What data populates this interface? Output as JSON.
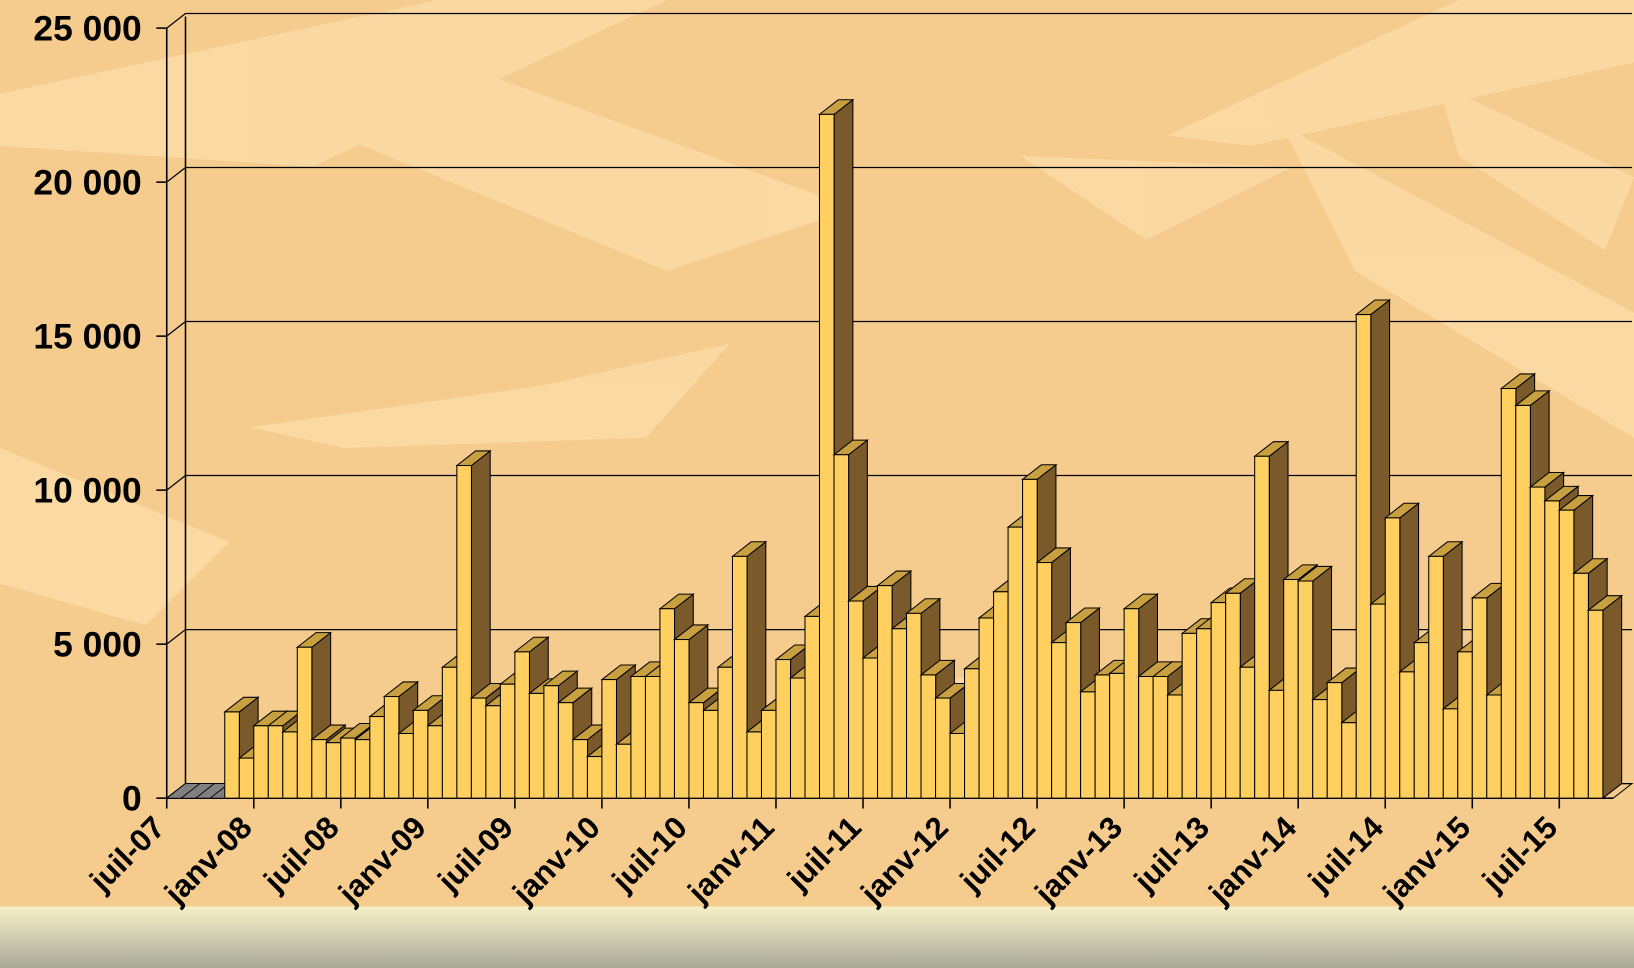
{
  "chart_data": {
    "type": "bar3d",
    "categories": [
      "juil-07",
      null,
      null,
      null,
      null,
      null,
      "janv-08",
      null,
      null,
      null,
      null,
      null,
      "juil-08",
      null,
      null,
      null,
      null,
      null,
      "janv-09",
      null,
      null,
      null,
      null,
      null,
      "juil-09",
      null,
      null,
      null,
      null,
      null,
      "janv-10",
      null,
      null,
      null,
      null,
      null,
      "juil-10",
      null,
      null,
      null,
      null,
      null,
      "janv-11",
      null,
      null,
      null,
      null,
      null,
      "juil-11",
      null,
      null,
      null,
      null,
      null,
      "janv-12",
      null,
      null,
      null,
      null,
      null,
      "juil-12",
      null,
      null,
      null,
      null,
      null,
      "janv-13",
      null,
      null,
      null,
      null,
      null,
      "juil-13",
      null,
      null,
      null,
      null,
      null,
      "janv-14",
      null,
      null,
      null,
      null,
      null,
      "juil-14",
      null,
      null,
      null,
      null,
      null,
      "janv-15",
      null,
      null,
      null,
      null,
      null,
      "juil-15",
      null,
      null
    ],
    "values": [
      0,
      0,
      0,
      0,
      2800,
      1300,
      2350,
      2350,
      2150,
      4900,
      1900,
      1800,
      1950,
      1900,
      2650,
      3300,
      2100,
      2850,
      2350,
      4250,
      10800,
      3250,
      3000,
      3700,
      4750,
      3400,
      3650,
      3100,
      1900,
      1350,
      3850,
      1750,
      3950,
      3950,
      6150,
      5150,
      3100,
      2850,
      4250,
      7850,
      2150,
      2850,
      4500,
      3900,
      5900,
      22200,
      11150,
      6400,
      4550,
      6900,
      5500,
      6000,
      4000,
      3250,
      2100,
      4200,
      5850,
      6700,
      8800,
      10350,
      7650,
      5050,
      5700,
      3450,
      4000,
      4050,
      6150,
      3950,
      3950,
      3350,
      5350,
      5500,
      6350,
      6650,
      4250,
      11100,
      3500,
      7100,
      7050,
      3200,
      3750,
      2450,
      15700,
      6300,
      9100,
      4100,
      5050,
      7850,
      2900,
      4750,
      6500,
      3350,
      13300,
      12750,
      10100,
      9650,
      9350,
      7300,
      6100
    ],
    "color": "#ffd060",
    "ylim": [
      0,
      25000
    ],
    "yticks": [
      0,
      {
        "value": 5000,
        "label": "5 000"
      },
      {
        "value": 10000,
        "label": "10 000"
      },
      {
        "value": 15000,
        "label": "15 000"
      },
      {
        "value": 20000,
        "label": "20 000"
      },
      {
        "value": 25000,
        "label": "25 000"
      }
    ],
    "grid": true
  }
}
